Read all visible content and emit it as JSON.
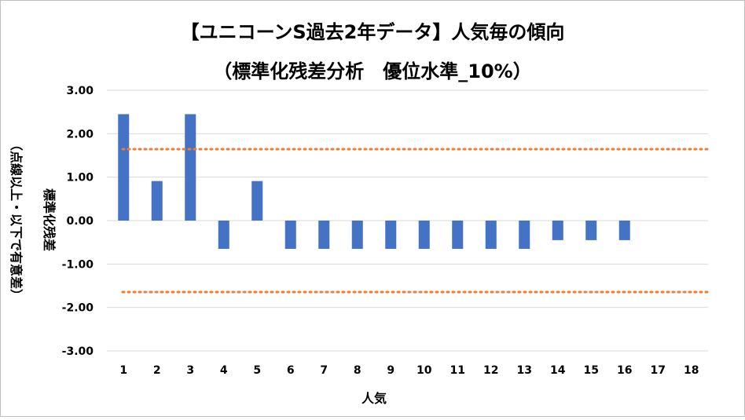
{
  "chart_data": {
    "type": "bar",
    "title": [
      "【ユニコーンS過去2年データ】人気毎の傾向",
      "（標準化残差分析　優位水準_10%）"
    ],
    "xlabel": "人気",
    "ylabel": "標準化残差",
    "ylabel_note": "（点線以上・以下で有意差）",
    "categories": [
      "1",
      "2",
      "3",
      "4",
      "5",
      "6",
      "7",
      "8",
      "9",
      "10",
      "11",
      "12",
      "13",
      "14",
      "15",
      "16",
      "17",
      "18"
    ],
    "values": [
      2.45,
      0.91,
      2.45,
      -0.65,
      0.91,
      -0.65,
      -0.65,
      -0.65,
      -0.65,
      -0.65,
      -0.65,
      -0.65,
      -0.65,
      -0.45,
      -0.45,
      -0.45,
      null,
      null
    ],
    "ylim": [
      -3.0,
      3.0
    ],
    "yticks": [
      "3.00",
      "2.00",
      "1.00",
      "0.00",
      "-1.00",
      "-2.00",
      "-3.00"
    ],
    "ytick_values": [
      3,
      2,
      1,
      0,
      -1,
      -2,
      -3
    ],
    "thresholds": [
      1.645,
      -1.645
    ],
    "colors": {
      "bar": "#4472c4",
      "threshold": "#ed7d31",
      "grid": "#d9d9d9"
    },
    "grid": "horizontal",
    "legend": "none"
  }
}
